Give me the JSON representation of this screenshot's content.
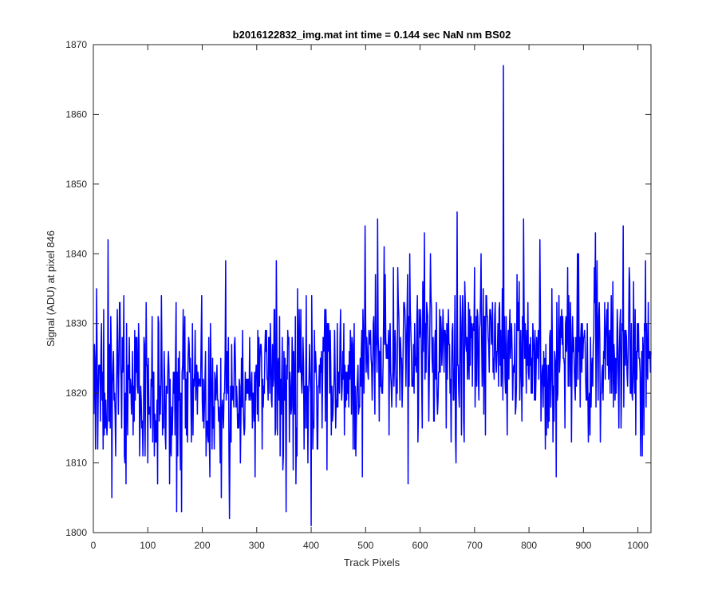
{
  "chart_data": {
    "type": "line",
    "title": "b2016122832_img.mat int time = 0.144 sec  NaN nm BS02",
    "xlabel": "Track Pixels",
    "ylabel": "Signal (ADU) at pixel 846",
    "xlim": [
      0,
      1024
    ],
    "ylim": [
      1800,
      1870
    ],
    "xticks": [
      0,
      100,
      200,
      300,
      400,
      500,
      600,
      700,
      800,
      900,
      1000
    ],
    "yticks": [
      1800,
      1810,
      1820,
      1830,
      1840,
      1850,
      1860,
      1870
    ],
    "grid": false,
    "legend": "none",
    "line_color": "#0000ff",
    "n_points": 1024,
    "noise_seed": 20161228,
    "segment_means": [
      {
        "x_range": [
          0,
          300
        ],
        "mean": 1820
      },
      {
        "x_range": [
          300,
          500
        ],
        "mean": 1822
      },
      {
        "x_range": [
          500,
          700
        ],
        "mean": 1826
      },
      {
        "x_range": [
          700,
          1024
        ],
        "mean": 1826
      }
    ],
    "noise_sd": 6,
    "notable_points": [
      {
        "x": 1,
        "y": 1817
      },
      {
        "x": 27,
        "y": 1842
      },
      {
        "x": 34,
        "y": 1805
      },
      {
        "x": 243,
        "y": 1839
      },
      {
        "x": 250,
        "y": 1802
      },
      {
        "x": 336,
        "y": 1839
      },
      {
        "x": 400,
        "y": 1801
      },
      {
        "x": 499,
        "y": 1844
      },
      {
        "x": 522,
        "y": 1845
      },
      {
        "x": 578,
        "y": 1807
      },
      {
        "x": 668,
        "y": 1846
      },
      {
        "x": 700,
        "y": 1838
      },
      {
        "x": 753,
        "y": 1867
      },
      {
        "x": 760,
        "y": 1814
      },
      {
        "x": 790,
        "y": 1845
      },
      {
        "x": 820,
        "y": 1842
      },
      {
        "x": 850,
        "y": 1808
      },
      {
        "x": 1005,
        "y": 1811
      },
      {
        "x": 1023,
        "y": 1823
      }
    ]
  }
}
